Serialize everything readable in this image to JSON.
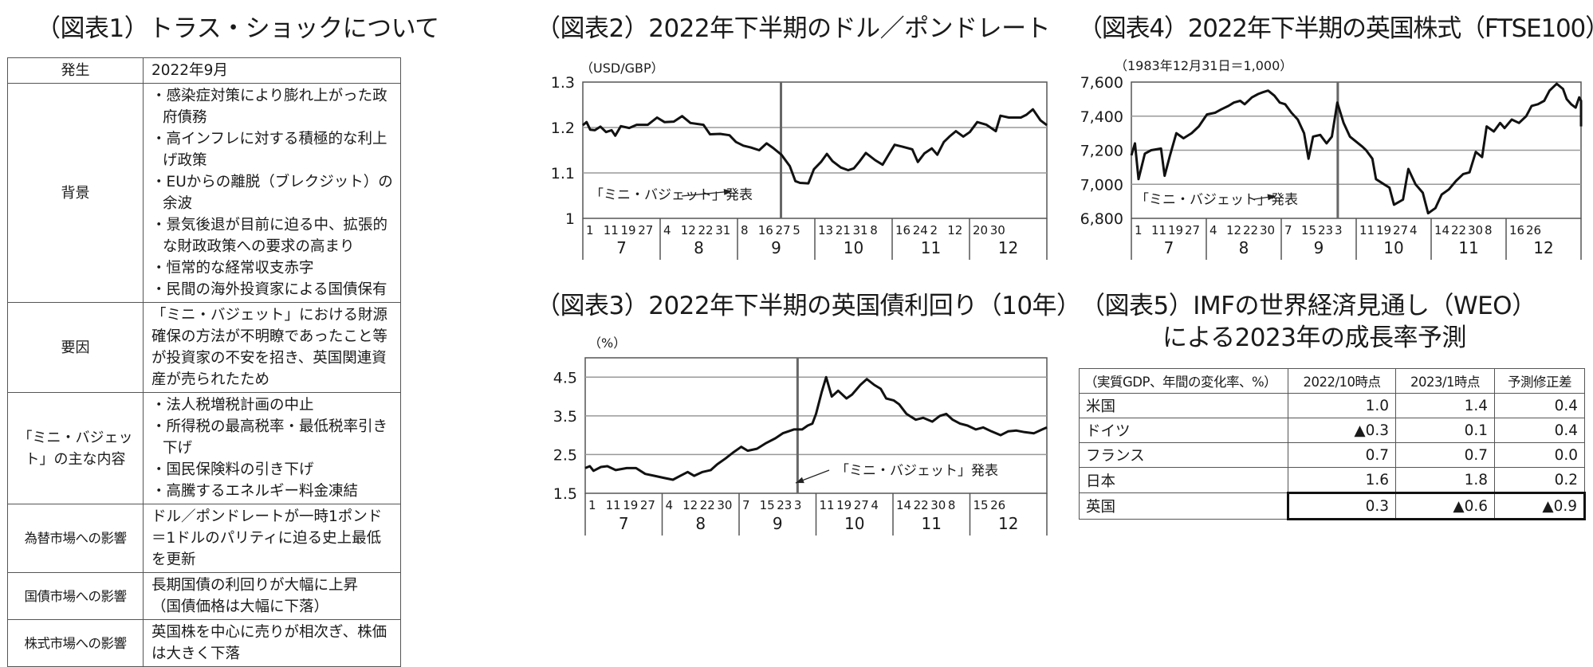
{
  "fig1": {
    "title": "（図表1）トラス・ショックについて",
    "rows": [
      {
        "label": "発生",
        "lines": [
          "2022年9月"
        ]
      },
      {
        "label": "背景",
        "bullets": [
          "・感染症対策により膨れ上がった政府債務",
          "・高インフレに対する積極的な利上げ政策",
          "・EUからの離脱（ブレクジット）の余波",
          "・景気後退が目前に迫る中、拡張的な財政政策への要求の高まり",
          "・恒常的な経常収支赤字",
          "・民間の海外投資家による国債保有"
        ]
      },
      {
        "label": "要因",
        "lines": [
          "「ミニ・バジェット」における財源確保の方法が不明瞭であったこと等が投資家の不安を招き、英国関連資産が売られたため"
        ]
      },
      {
        "label": "「ミニ・バジェット」の主な内容",
        "bullets": [
          "・法人税増税計画の中止",
          "・所得税の最高税率・最低税率引き下げ",
          "・国民保険料の引き下げ",
          "・高騰するエネルギー料金凍結"
        ]
      },
      {
        "label": "為替市場への影響",
        "lines": [
          "ドル／ポンドレートが一時1ポンド＝1ドルのパリティに迫る史上最低を更新"
        ]
      },
      {
        "label": "国債市場への影響",
        "lines": [
          "長期国債の利回りが大幅に上昇",
          "（国債価格は大幅に下落）"
        ]
      },
      {
        "label": "株式市場への影響",
        "lines": [
          "英国株を中心に売りが相次ぎ、株価は大きく下落"
        ]
      }
    ]
  },
  "fig5": {
    "title_line1": "（図表5）IMFの世界経済見通し（WEO）",
    "title_line2": "による2023年の成長率予測",
    "headers": [
      "（実質GDP、年間の変化率、%）",
      "2022/10時点",
      "2023/1時点",
      "予測修正差"
    ],
    "rows": [
      [
        "米国",
        "1.0",
        "1.4",
        "0.4"
      ],
      [
        "ドイツ",
        "▲0.3",
        "0.1",
        "0.4"
      ],
      [
        "フランス",
        "0.7",
        "0.7",
        "0.0"
      ],
      [
        "日本",
        "1.6",
        "1.8",
        "0.2"
      ],
      [
        "英国",
        "0.3",
        "▲0.6",
        "▲0.9"
      ]
    ]
  },
  "chart_data": [
    {
      "id": "fig2",
      "type": "line",
      "title": "（図表2）2022年下半期のドル／ポンドレート",
      "ylabel": "（USD/GBP）",
      "xlabel": "",
      "ylim": [
        1.0,
        1.3
      ],
      "yticks": [
        "1.3",
        "1.2",
        "1.1",
        "1"
      ],
      "grid": true,
      "month_labels": [
        "7",
        "8",
        "9",
        "10",
        "11",
        "12"
      ],
      "day_ticks": [
        "1",
        "11",
        "19",
        "27",
        "4",
        "12",
        "22",
        "31",
        "8",
        "16",
        "27",
        "5",
        "13",
        "21",
        "31",
        "8",
        "16",
        "24",
        "2",
        "12",
        "20",
        "30"
      ],
      "annotation": "「ミニ・バジェット」発表",
      "event_x": 0.427,
      "series": [
        {
          "name": "USD/GBP",
          "points": [
            [
              0.0,
              1.205
            ],
            [
              0.008,
              1.212
            ],
            [
              0.016,
              1.195
            ],
            [
              0.026,
              1.194
            ],
            [
              0.038,
              1.202
            ],
            [
              0.05,
              1.19
            ],
            [
              0.062,
              1.194
            ],
            [
              0.07,
              1.182
            ],
            [
              0.082,
              1.203
            ],
            [
              0.1,
              1.199
            ],
            [
              0.116,
              1.206
            ],
            [
              0.14,
              1.206
            ],
            [
              0.16,
              1.222
            ],
            [
              0.176,
              1.212
            ],
            [
              0.196,
              1.213
            ],
            [
              0.214,
              1.225
            ],
            [
              0.232,
              1.21
            ],
            [
              0.26,
              1.206
            ],
            [
              0.274,
              1.185
            ],
            [
              0.296,
              1.186
            ],
            [
              0.316,
              1.183
            ],
            [
              0.33,
              1.168
            ],
            [
              0.346,
              1.16
            ],
            [
              0.362,
              1.156
            ],
            [
              0.38,
              1.15
            ],
            [
              0.396,
              1.165
            ],
            [
              0.41,
              1.155
            ],
            [
              0.428,
              1.14
            ],
            [
              0.446,
              1.115
            ],
            [
              0.458,
              1.082
            ],
            [
              0.468,
              1.078
            ],
            [
              0.486,
              1.077
            ],
            [
              0.498,
              1.108
            ],
            [
              0.514,
              1.125
            ],
            [
              0.526,
              1.142
            ],
            [
              0.538,
              1.126
            ],
            [
              0.556,
              1.112
            ],
            [
              0.572,
              1.106
            ],
            [
              0.584,
              1.11
            ],
            [
              0.596,
              1.125
            ],
            [
              0.61,
              1.144
            ],
            [
              0.63,
              1.128
            ],
            [
              0.646,
              1.118
            ],
            [
              0.66,
              1.142
            ],
            [
              0.672,
              1.162
            ],
            [
              0.688,
              1.158
            ],
            [
              0.71,
              1.152
            ],
            [
              0.722,
              1.124
            ],
            [
              0.736,
              1.143
            ],
            [
              0.752,
              1.154
            ],
            [
              0.764,
              1.14
            ],
            [
              0.778,
              1.168
            ],
            [
              0.79,
              1.18
            ],
            [
              0.804,
              1.192
            ],
            [
              0.82,
              1.18
            ],
            [
              0.834,
              1.19
            ],
            [
              0.85,
              1.212
            ],
            [
              0.87,
              1.206
            ],
            [
              0.89,
              1.192
            ],
            [
              0.9,
              1.226
            ],
            [
              0.918,
              1.222
            ],
            [
              0.944,
              1.222
            ],
            [
              0.956,
              1.228
            ],
            [
              0.97,
              1.24
            ],
            [
              0.986,
              1.216
            ],
            [
              1.0,
              1.205
            ]
          ]
        }
      ]
    },
    {
      "id": "fig3",
      "type": "line",
      "title": "（図表3）2022年下半期の英国債利回り（10年）",
      "ylabel": "（%）",
      "xlabel": "",
      "ylim": [
        1.5,
        5.0
      ],
      "yticks": [
        "4.5",
        "3.5",
        "2.5",
        "1.5"
      ],
      "grid": true,
      "month_labels": [
        "7",
        "8",
        "9",
        "10",
        "11",
        "12"
      ],
      "day_ticks": [
        "1",
        "11",
        "19",
        "27",
        "4",
        "12",
        "22",
        "30",
        "7",
        "15",
        "23",
        "3",
        "11",
        "19",
        "27",
        "4",
        "14",
        "22",
        "30",
        "8",
        "15",
        "26"
      ],
      "annotation": "「ミニ・バジェット」発表",
      "event_x": 0.46,
      "series": [
        {
          "name": "英国債10年利回り",
          "points": [
            [
              0.0,
              2.15
            ],
            [
              0.01,
              2.2
            ],
            [
              0.018,
              2.08
            ],
            [
              0.034,
              2.18
            ],
            [
              0.048,
              2.2
            ],
            [
              0.066,
              2.1
            ],
            [
              0.09,
              2.15
            ],
            [
              0.11,
              2.15
            ],
            [
              0.13,
              2.0
            ],
            [
              0.15,
              1.95
            ],
            [
              0.17,
              1.9
            ],
            [
              0.19,
              1.85
            ],
            [
              0.206,
              1.95
            ],
            [
              0.222,
              2.05
            ],
            [
              0.236,
              1.95
            ],
            [
              0.254,
              2.05
            ],
            [
              0.272,
              2.1
            ],
            [
              0.286,
              2.25
            ],
            [
              0.304,
              2.4
            ],
            [
              0.32,
              2.55
            ],
            [
              0.338,
              2.7
            ],
            [
              0.352,
              2.6
            ],
            [
              0.372,
              2.65
            ],
            [
              0.392,
              2.8
            ],
            [
              0.412,
              2.92
            ],
            [
              0.428,
              3.05
            ],
            [
              0.44,
              3.1
            ],
            [
              0.452,
              3.15
            ],
            [
              0.47,
              3.15
            ],
            [
              0.482,
              3.25
            ],
            [
              0.492,
              3.3
            ],
            [
              0.5,
              3.55
            ],
            [
              0.512,
              4.1
            ],
            [
              0.522,
              4.5
            ],
            [
              0.534,
              4.0
            ],
            [
              0.548,
              4.15
            ],
            [
              0.566,
              3.95
            ],
            [
              0.578,
              4.05
            ],
            [
              0.596,
              4.3
            ],
            [
              0.61,
              4.45
            ],
            [
              0.626,
              4.3
            ],
            [
              0.64,
              4.2
            ],
            [
              0.652,
              3.95
            ],
            [
              0.668,
              3.9
            ],
            [
              0.68,
              3.8
            ],
            [
              0.696,
              3.55
            ],
            [
              0.716,
              3.4
            ],
            [
              0.732,
              3.45
            ],
            [
              0.752,
              3.35
            ],
            [
              0.768,
              3.5
            ],
            [
              0.782,
              3.55
            ],
            [
              0.796,
              3.4
            ],
            [
              0.812,
              3.3
            ],
            [
              0.828,
              3.25
            ],
            [
              0.846,
              3.15
            ],
            [
              0.862,
              3.2
            ],
            [
              0.88,
              3.1
            ],
            [
              0.9,
              3.0
            ],
            [
              0.916,
              3.1
            ],
            [
              0.934,
              3.12
            ],
            [
              0.952,
              3.08
            ],
            [
              0.972,
              3.05
            ],
            [
              0.99,
              3.15
            ],
            [
              1.0,
              3.2
            ]
          ]
        }
      ]
    },
    {
      "id": "fig4",
      "type": "line",
      "title": "（図表4）2022年下半期の英国株式（FTSE100）",
      "ylabel": "（1983年12月31日＝1,000）",
      "xlabel": "",
      "ylim": [
        6800,
        7600
      ],
      "yticks": [
        "7,600",
        "7,400",
        "7,200",
        "7,000",
        "6,800"
      ],
      "grid": true,
      "month_labels": [
        "7",
        "8",
        "9",
        "10",
        "11",
        "12"
      ],
      "day_ticks": [
        "1",
        "11",
        "19",
        "27",
        "4",
        "12",
        "22",
        "30",
        "7",
        "15",
        "23",
        "3",
        "11",
        "19",
        "27",
        "4",
        "14",
        "22",
        "30",
        "8",
        "16",
        "26"
      ],
      "annotation": "「ミニ・バジェット」発表",
      "event_x": 0.459,
      "series": [
        {
          "name": "FTSE100",
          "points": [
            [
              0.0,
              7170
            ],
            [
              0.008,
              7240
            ],
            [
              0.016,
              7030
            ],
            [
              0.03,
              7180
            ],
            [
              0.044,
              7200
            ],
            [
              0.066,
              7210
            ],
            [
              0.074,
              7050
            ],
            [
              0.086,
              7170
            ],
            [
              0.1,
              7300
            ],
            [
              0.116,
              7270
            ],
            [
              0.134,
              7300
            ],
            [
              0.15,
              7340
            ],
            [
              0.168,
              7410
            ],
            [
              0.186,
              7420
            ],
            [
              0.2,
              7440
            ],
            [
              0.216,
              7460
            ],
            [
              0.228,
              7480
            ],
            [
              0.242,
              7490
            ],
            [
              0.252,
              7470
            ],
            [
              0.268,
              7510
            ],
            [
              0.282,
              7530
            ],
            [
              0.292,
              7540
            ],
            [
              0.304,
              7550
            ],
            [
              0.318,
              7520
            ],
            [
              0.33,
              7480
            ],
            [
              0.342,
              7470
            ],
            [
              0.356,
              7420
            ],
            [
              0.37,
              7380
            ],
            [
              0.384,
              7300
            ],
            [
              0.394,
              7150
            ],
            [
              0.404,
              7280
            ],
            [
              0.42,
              7290
            ],
            [
              0.434,
              7240
            ],
            [
              0.446,
              7280
            ],
            [
              0.458,
              7480
            ],
            [
              0.472,
              7360
            ],
            [
              0.486,
              7280
            ],
            [
              0.5,
              7250
            ],
            [
              0.514,
              7220
            ],
            [
              0.522,
              7200
            ],
            [
              0.536,
              7150
            ],
            [
              0.544,
              7030
            ],
            [
              0.562,
              7000
            ],
            [
              0.574,
              6980
            ],
            [
              0.584,
              6880
            ],
            [
              0.604,
              6910
            ],
            [
              0.616,
              7090
            ],
            [
              0.632,
              7000
            ],
            [
              0.648,
              6950
            ],
            [
              0.66,
              6830
            ],
            [
              0.676,
              6860
            ],
            [
              0.69,
              6940
            ],
            [
              0.706,
              6970
            ],
            [
              0.722,
              7020
            ],
            [
              0.738,
              7060
            ],
            [
              0.752,
              7070
            ],
            [
              0.766,
              7190
            ],
            [
              0.78,
              7160
            ],
            [
              0.79,
              7340
            ],
            [
              0.806,
              7310
            ],
            [
              0.82,
              7360
            ],
            [
              0.83,
              7330
            ],
            [
              0.846,
              7380
            ],
            [
              0.862,
              7360
            ],
            [
              0.878,
              7400
            ],
            [
              0.89,
              7460
            ],
            [
              0.904,
              7470
            ],
            [
              0.918,
              7490
            ],
            [
              0.93,
              7550
            ],
            [
              0.946,
              7590
            ],
            [
              0.96,
              7560
            ],
            [
              0.968,
              7500
            ],
            [
              0.978,
              7470
            ],
            [
              0.988,
              7450
            ],
            [
              0.996,
              7510
            ],
            [
              1.01,
              7490
            ],
            [
              1.024,
              7440
            ],
            [
              1.04,
              7340
            ]
          ]
        }
      ]
    }
  ]
}
